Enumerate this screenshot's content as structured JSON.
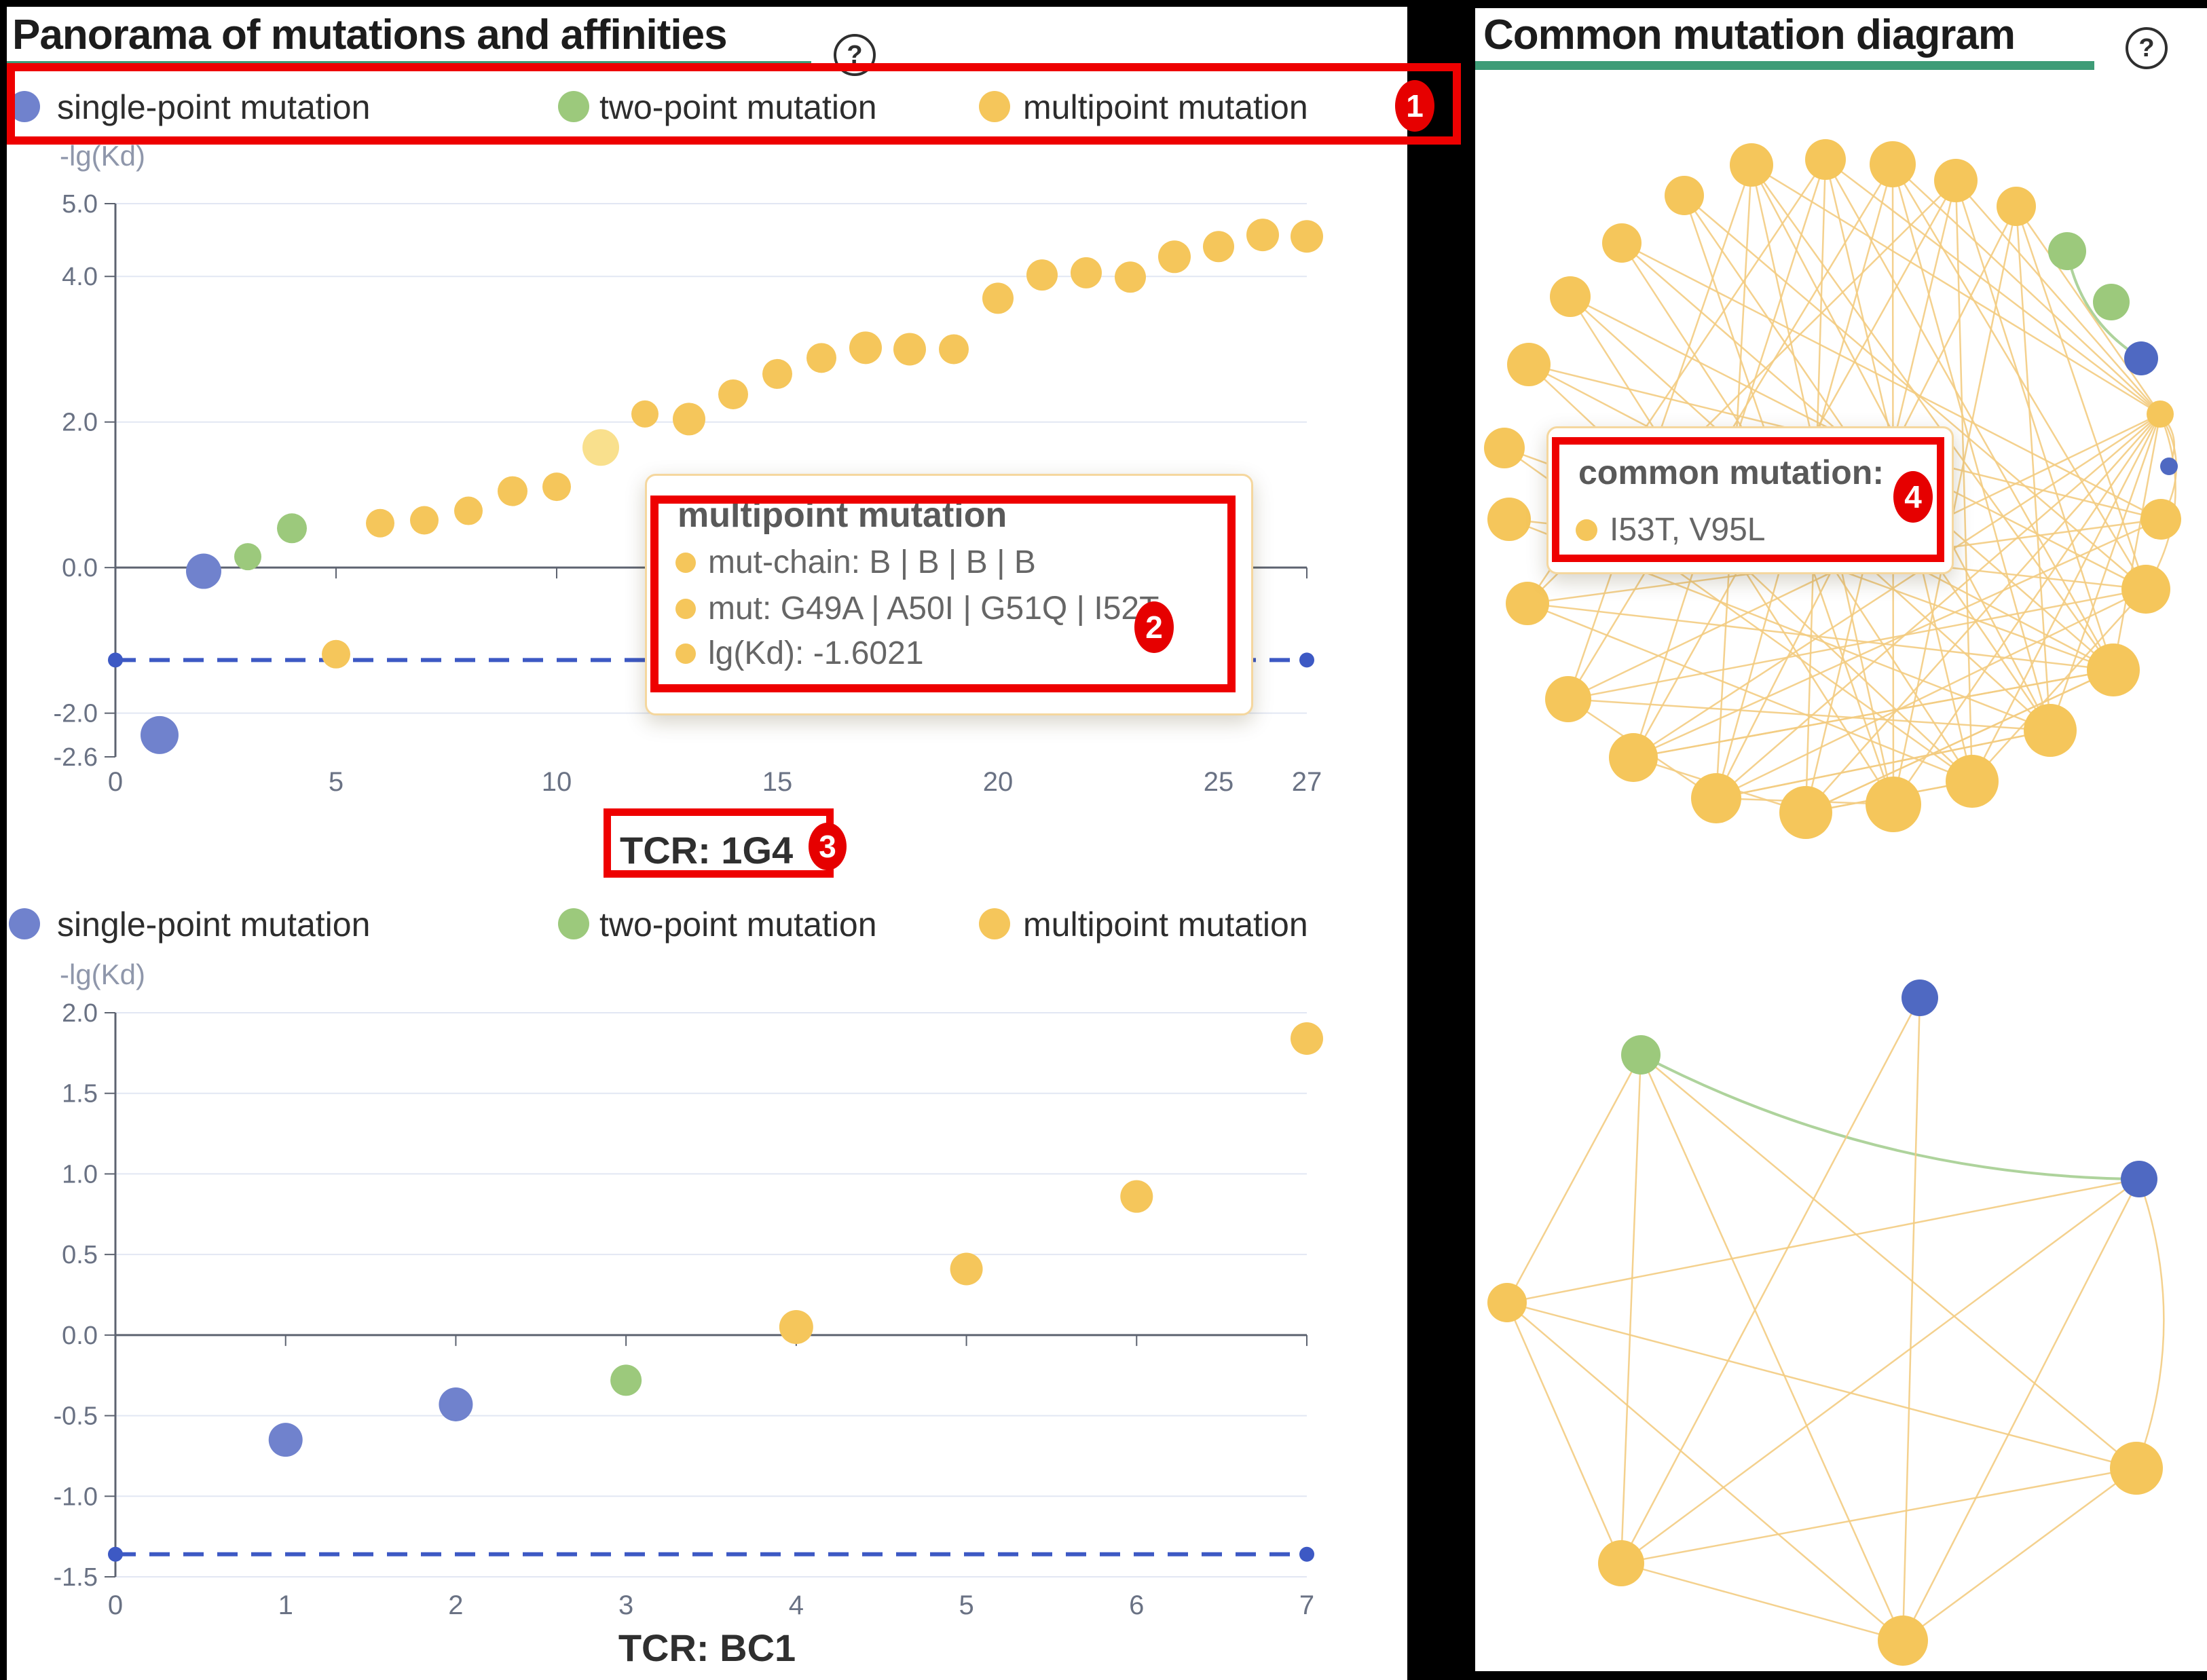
{
  "colors": {
    "single": "#7082CD",
    "two": "#9CC97C",
    "multi": "#F5C65B",
    "multi_highlight": "#F9E08D",
    "network_single": "#4F69C2",
    "baseline": "#3D59C4",
    "edge": "#F3CC82",
    "edge_green": "#A5CE91",
    "annotation": "#EE0000",
    "underline": "#3E9C77",
    "axis": "#5d6370",
    "grid": "#e2e7f3",
    "tick_text": "#6a7284"
  },
  "legend": {
    "items": [
      {
        "label": "single-point mutation",
        "key": "single"
      },
      {
        "label": "two-point mutation",
        "key": "two"
      },
      {
        "label": "multipoint mutation",
        "key": "multi"
      }
    ]
  },
  "left_panel": {
    "title": "Panorama of mutations and affinities",
    "help": "?",
    "axis_label": "-lg(Kd)",
    "chart1_caption": "TCR: 1G4",
    "chart2_caption": "TCR: BC1",
    "tooltip": {
      "title": "multipoint mutation",
      "rows": [
        "mut-chain: B | B | B | B",
        "mut: G49A | A50I | G51Q | I52T",
        "lg(Kd): -1.6021"
      ]
    }
  },
  "right_panel": {
    "title": "Common mutation diagram",
    "help": "?",
    "tooltip": {
      "title": "common mutation:",
      "row": "I53T, V95L"
    }
  },
  "annotations": {
    "badges": [
      "1",
      "2",
      "3",
      "4"
    ]
  },
  "chart_data": [
    {
      "id": "scatter-1g4",
      "type": "scatter",
      "title": "TCR: 1G4",
      "ylabel": "-lg(Kd)",
      "xlim": [
        0,
        27
      ],
      "ylim": [
        -2.6,
        5.0
      ],
      "y_ticks": [
        {
          "v": 5.0,
          "label": "5.0",
          "grid": true
        },
        {
          "v": 4.0,
          "label": "4.0",
          "grid": true
        },
        {
          "v": 2.0,
          "label": "2.0",
          "grid": true
        },
        {
          "v": 0.0,
          "label": "0.0",
          "grid": true
        },
        {
          "v": -2.0,
          "label": "-2.0",
          "grid": true
        },
        {
          "v": -2.6,
          "label": "-2.6",
          "grid": false
        }
      ],
      "x_ticks": [
        0,
        5,
        10,
        15,
        20,
        25,
        27
      ],
      "baseline": {
        "y": -1.27,
        "x0": 0,
        "x1": 27,
        "er": 11
      },
      "points": [
        {
          "x": 1,
          "y": -2.3,
          "c": "single",
          "r": 28
        },
        {
          "x": 2,
          "y": -0.05,
          "c": "single",
          "r": 26
        },
        {
          "x": 3,
          "y": 0.15,
          "c": "two",
          "r": 20
        },
        {
          "x": 4,
          "y": 0.54,
          "c": "two",
          "r": 22
        },
        {
          "x": 5,
          "y": -1.19,
          "c": "multi",
          "r": 21
        },
        {
          "x": 6,
          "y": 0.61,
          "c": "multi",
          "r": 21
        },
        {
          "x": 7,
          "y": 0.65,
          "c": "multi",
          "r": 21
        },
        {
          "x": 8,
          "y": 0.78,
          "c": "multi",
          "r": 21
        },
        {
          "x": 9,
          "y": 1.05,
          "c": "multi",
          "r": 22
        },
        {
          "x": 10,
          "y": 1.11,
          "c": "multi",
          "r": 21
        },
        {
          "x": 11,
          "y": 1.65,
          "c": "multi_hl",
          "r": 27
        },
        {
          "x": 12,
          "y": 2.11,
          "c": "multi",
          "r": 20
        },
        {
          "x": 13,
          "y": 2.04,
          "c": "multi",
          "r": 24
        },
        {
          "x": 14,
          "y": 2.38,
          "c": "multi",
          "r": 22
        },
        {
          "x": 15,
          "y": 2.66,
          "c": "multi",
          "r": 22
        },
        {
          "x": 16,
          "y": 2.88,
          "c": "multi",
          "r": 22
        },
        {
          "x": 17,
          "y": 3.02,
          "c": "multi",
          "r": 24
        },
        {
          "x": 18,
          "y": 3.0,
          "c": "multi",
          "r": 24
        },
        {
          "x": 19,
          "y": 3.0,
          "c": "multi",
          "r": 22
        },
        {
          "x": 20,
          "y": 3.7,
          "c": "multi",
          "r": 23
        },
        {
          "x": 21,
          "y": 4.02,
          "c": "multi",
          "r": 23
        },
        {
          "x": 22,
          "y": 4.05,
          "c": "multi",
          "r": 23
        },
        {
          "x": 23,
          "y": 3.99,
          "c": "multi",
          "r": 23
        },
        {
          "x": 24,
          "y": 4.27,
          "c": "multi",
          "r": 24
        },
        {
          "x": 25,
          "y": 4.41,
          "c": "multi",
          "r": 23
        },
        {
          "x": 26,
          "y": 4.57,
          "c": "multi",
          "r": 24
        },
        {
          "x": 27,
          "y": 4.55,
          "c": "multi",
          "r": 24
        }
      ]
    },
    {
      "id": "scatter-bc1",
      "type": "scatter",
      "title": "TCR: BC1",
      "ylabel": "-lg(Kd)",
      "xlim": [
        0,
        7
      ],
      "ylim": [
        -1.5,
        2.0
      ],
      "y_ticks": [
        {
          "v": 2.0,
          "label": "2.0",
          "grid": true
        },
        {
          "v": 1.5,
          "label": "1.5",
          "grid": true
        },
        {
          "v": 1.0,
          "label": "1.0",
          "grid": true
        },
        {
          "v": 0.5,
          "label": "0.5",
          "grid": true
        },
        {
          "v": 0.0,
          "label": "0.0",
          "grid": true
        },
        {
          "v": -0.5,
          "label": "-0.5",
          "grid": true
        },
        {
          "v": -1.0,
          "label": "-1.0",
          "grid": true
        },
        {
          "v": -1.5,
          "label": "-1.5",
          "grid": true
        }
      ],
      "x_ticks": [
        0,
        1,
        2,
        3,
        4,
        5,
        6,
        7
      ],
      "baseline": {
        "y": -1.36,
        "x0": 0,
        "x1": 7,
        "er": 11
      },
      "points": [
        {
          "x": 1,
          "y": -0.65,
          "c": "single",
          "r": 25
        },
        {
          "x": 2,
          "y": -0.43,
          "c": "single",
          "r": 25
        },
        {
          "x": 3,
          "y": -0.28,
          "c": "two",
          "r": 23
        },
        {
          "x": 4,
          "y": 0.05,
          "c": "multi",
          "r": 25
        },
        {
          "x": 5,
          "y": 0.41,
          "c": "multi",
          "r": 24
        },
        {
          "x": 6,
          "y": 0.86,
          "c": "multi",
          "r": 24
        },
        {
          "x": 7,
          "y": 1.84,
          "c": "multi",
          "r": 24
        }
      ]
    },
    {
      "id": "network-common-top",
      "type": "graph",
      "nodes": [
        [
          407,
          133,
          32,
          "y"
        ],
        [
          516,
          125,
          30,
          "y"
        ],
        [
          615,
          132,
          34,
          "y"
        ],
        [
          708,
          156,
          32,
          "y"
        ],
        [
          797,
          194,
          29,
          "y"
        ],
        [
          872,
          260,
          28,
          "g"
        ],
        [
          937,
          335,
          27,
          "g"
        ],
        [
          981,
          418,
          25,
          "b"
        ],
        [
          1009,
          500,
          20,
          "y"
        ],
        [
          1022,
          577,
          13,
          "b"
        ],
        [
          1010,
          655,
          30,
          "y"
        ],
        [
          988,
          758,
          36,
          "y"
        ],
        [
          940,
          877,
          39,
          "y"
        ],
        [
          847,
          966,
          39,
          "y"
        ],
        [
          732,
          1041,
          39,
          "y"
        ],
        [
          616,
          1075,
          41,
          "y"
        ],
        [
          487,
          1087,
          39,
          "y"
        ],
        [
          355,
          1066,
          37,
          "y"
        ],
        [
          233,
          1006,
          36,
          "y"
        ],
        [
          137,
          920,
          34,
          "y"
        ],
        [
          77,
          779,
          32,
          "y"
        ],
        [
          50,
          655,
          32,
          "y"
        ],
        [
          43,
          550,
          30,
          "y"
        ],
        [
          79,
          427,
          32,
          "y"
        ],
        [
          140,
          327,
          30,
          "y"
        ],
        [
          216,
          248,
          29,
          "y"
        ],
        [
          308,
          178,
          29,
          "y"
        ]
      ],
      "edges": [
        [
          5,
          7,
          0.22,
          "g"
        ],
        [
          8,
          0
        ],
        [
          8,
          1
        ],
        [
          8,
          2
        ],
        [
          8,
          3
        ],
        [
          8,
          4
        ],
        [
          8,
          13
        ],
        [
          8,
          14
        ],
        [
          8,
          15
        ],
        [
          8,
          16
        ],
        [
          8,
          17
        ],
        [
          8,
          18
        ],
        [
          8,
          19
        ],
        [
          8,
          12
        ],
        [
          8,
          9,
          -0.35
        ],
        [
          8,
          10,
          -0.3
        ],
        [
          8,
          11,
          -0.25
        ],
        [
          0,
          13
        ],
        [
          0,
          15
        ],
        [
          0,
          17
        ],
        [
          0,
          19
        ],
        [
          0,
          12
        ],
        [
          1,
          14
        ],
        [
          1,
          16
        ],
        [
          1,
          18
        ],
        [
          1,
          12
        ],
        [
          1,
          20
        ],
        [
          2,
          13
        ],
        [
          2,
          15
        ],
        [
          2,
          17
        ],
        [
          2,
          19
        ],
        [
          2,
          11
        ],
        [
          3,
          14
        ],
        [
          3,
          16
        ],
        [
          3,
          18
        ],
        [
          3,
          20
        ],
        [
          3,
          12
        ],
        [
          4,
          15
        ],
        [
          4,
          13
        ],
        [
          4,
          17
        ],
        [
          4,
          11
        ],
        [
          23,
          12
        ],
        [
          23,
          14
        ],
        [
          23,
          10
        ],
        [
          24,
          13
        ],
        [
          24,
          15
        ],
        [
          24,
          11
        ],
        [
          25,
          12
        ],
        [
          25,
          14
        ],
        [
          25,
          10
        ],
        [
          26,
          11
        ],
        [
          26,
          13
        ],
        [
          26,
          15
        ],
        [
          22,
          12
        ],
        [
          22,
          14
        ],
        [
          21,
          13
        ],
        [
          21,
          11
        ],
        [
          20,
          12
        ],
        [
          20,
          14
        ],
        [
          20,
          10
        ],
        [
          19,
          11
        ],
        [
          19,
          13
        ],
        [
          18,
          10
        ],
        [
          18,
          12
        ],
        [
          17,
          11
        ],
        [
          17,
          13
        ],
        [
          16,
          12
        ],
        [
          16,
          14
        ],
        [
          11,
          14
        ],
        [
          12,
          16
        ],
        [
          14,
          16
        ],
        [
          15,
          17
        ],
        [
          16,
          18
        ],
        [
          17,
          19
        ],
        [
          13,
          17
        ],
        [
          12,
          18
        ]
      ]
    },
    {
      "id": "network-common-bottom",
      "type": "graph",
      "nodes": [
        [
          655,
          1360,
          27,
          "b"
        ],
        [
          244,
          1444,
          29,
          "g"
        ],
        [
          978,
          1627,
          27,
          "b"
        ],
        [
          47,
          1809,
          29,
          "y"
        ],
        [
          974,
          2053,
          39,
          "y"
        ],
        [
          215,
          2193,
          34,
          "y"
        ],
        [
          630,
          2307,
          37,
          "y"
        ]
      ],
      "edges": [
        [
          1,
          2,
          0.12,
          "g"
        ],
        [
          1,
          3
        ],
        [
          1,
          5
        ],
        [
          1,
          6
        ],
        [
          1,
          4
        ],
        [
          0,
          6
        ],
        [
          0,
          5
        ],
        [
          2,
          3
        ],
        [
          2,
          5
        ],
        [
          2,
          6
        ],
        [
          2,
          4,
          -0.18
        ],
        [
          3,
          5
        ],
        [
          3,
          6
        ],
        [
          3,
          4
        ],
        [
          5,
          6
        ],
        [
          5,
          4
        ],
        [
          6,
          4
        ]
      ]
    }
  ]
}
